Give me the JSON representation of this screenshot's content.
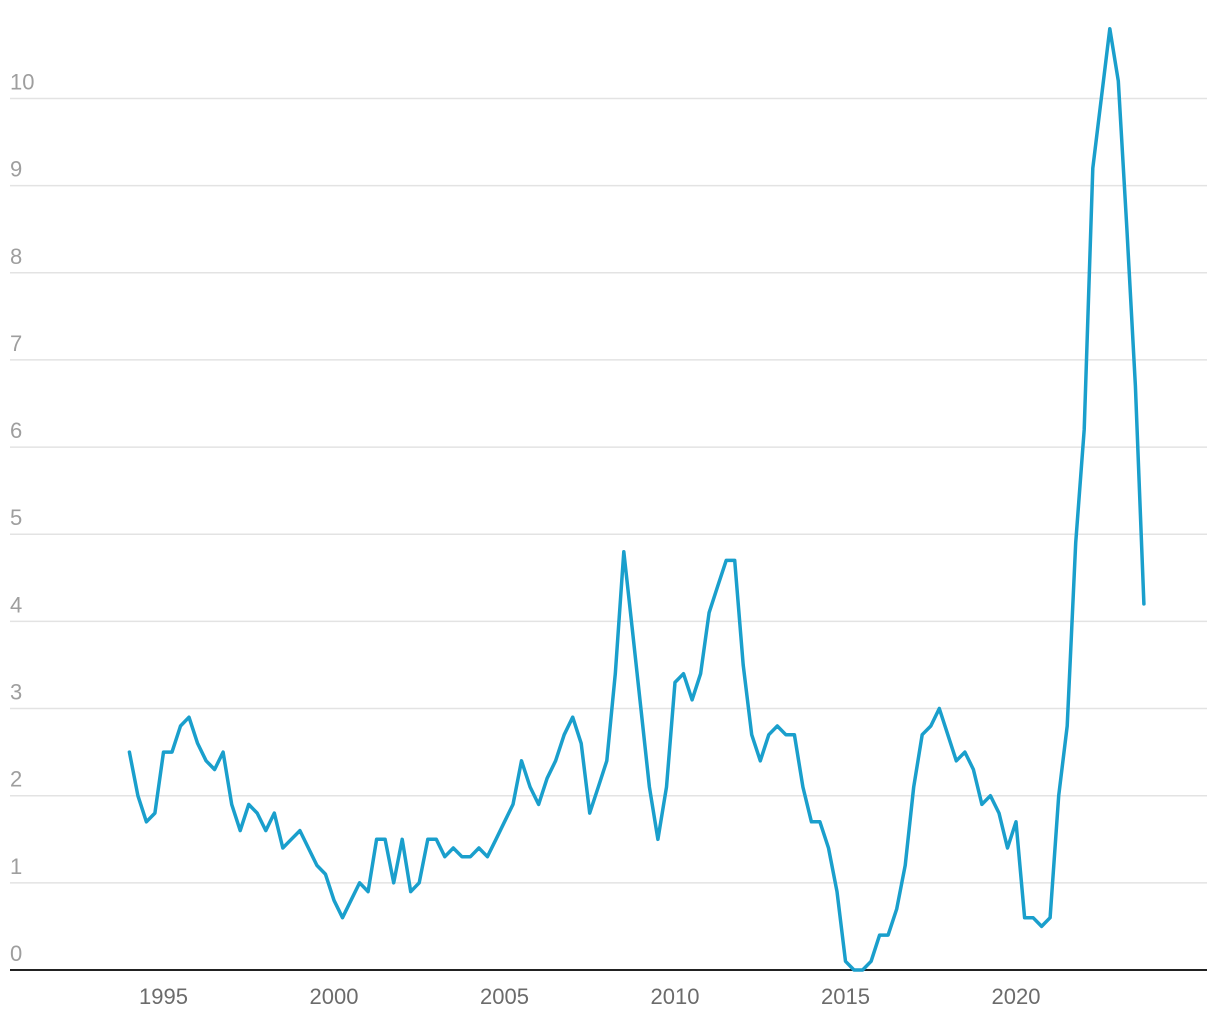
{
  "chart_data": {
    "type": "line",
    "title": "",
    "xlabel": "",
    "ylabel": "",
    "xlim": [
      1990.5,
      2025.6
    ],
    "ylim": [
      0,
      10.9
    ],
    "y_ticks": [
      "0",
      "1",
      "2",
      "3",
      "4",
      "5",
      "6",
      "7",
      "8",
      "9",
      "10"
    ],
    "x_ticks": [
      "1995",
      "2000",
      "2005",
      "2010",
      "2015",
      "2020"
    ],
    "grid": true,
    "series": [
      {
        "name": "",
        "color": "#1a9fcc",
        "x": [
          1994.0,
          1994.25,
          1994.5,
          1994.75,
          1995.0,
          1995.25,
          1995.5,
          1995.75,
          1996.0,
          1996.25,
          1996.5,
          1996.75,
          1997.0,
          1997.25,
          1997.5,
          1997.75,
          1998.0,
          1998.25,
          1998.5,
          1998.75,
          1999.0,
          1999.25,
          1999.5,
          1999.75,
          2000.0,
          2000.25,
          2000.5,
          2000.75,
          2001.0,
          2001.25,
          2001.5,
          2001.75,
          2002.0,
          2002.25,
          2002.5,
          2002.75,
          2003.0,
          2003.25,
          2003.5,
          2003.75,
          2004.0,
          2004.25,
          2004.5,
          2004.75,
          2005.0,
          2005.25,
          2005.5,
          2005.75,
          2006.0,
          2006.25,
          2006.5,
          2006.75,
          2007.0,
          2007.25,
          2007.5,
          2007.75,
          2008.0,
          2008.25,
          2008.5,
          2008.75,
          2009.0,
          2009.25,
          2009.5,
          2009.75,
          2010.0,
          2010.25,
          2010.5,
          2010.75,
          2011.0,
          2011.25,
          2011.5,
          2011.75,
          2012.0,
          2012.25,
          2012.5,
          2012.75,
          2013.0,
          2013.25,
          2013.5,
          2013.75,
          2014.0,
          2014.25,
          2014.5,
          2014.75,
          2015.0,
          2015.25,
          2015.5,
          2015.75,
          2016.0,
          2016.25,
          2016.5,
          2016.75,
          2017.0,
          2017.25,
          2017.5,
          2017.75,
          2018.0,
          2018.25,
          2018.5,
          2018.75,
          2019.0,
          2019.25,
          2019.5,
          2019.75,
          2020.0,
          2020.25,
          2020.5,
          2020.75,
          2021.0,
          2021.25,
          2021.5,
          2021.75,
          2022.0,
          2022.25,
          2022.5,
          2022.75,
          2023.0,
          2023.25,
          2023.5,
          2023.75
        ],
        "values": [
          2.5,
          2.0,
          1.7,
          1.8,
          2.5,
          2.5,
          2.8,
          2.9,
          2.6,
          2.4,
          2.3,
          2.5,
          1.9,
          1.6,
          1.9,
          1.8,
          1.6,
          1.8,
          1.4,
          1.5,
          1.6,
          1.4,
          1.2,
          1.1,
          0.8,
          0.6,
          0.8,
          1.0,
          0.9,
          1.5,
          1.5,
          1.0,
          1.5,
          0.9,
          1.0,
          1.5,
          1.5,
          1.3,
          1.4,
          1.3,
          1.3,
          1.4,
          1.3,
          1.5,
          1.7,
          1.9,
          2.4,
          2.1,
          1.9,
          2.2,
          2.4,
          2.7,
          2.9,
          2.6,
          1.8,
          2.1,
          2.4,
          3.4,
          4.8,
          3.9,
          3.0,
          2.1,
          1.5,
          2.1,
          3.3,
          3.4,
          3.1,
          3.4,
          4.1,
          4.4,
          4.7,
          4.7,
          3.5,
          2.7,
          2.4,
          2.7,
          2.8,
          2.7,
          2.7,
          2.1,
          1.7,
          1.7,
          1.4,
          0.9,
          0.1,
          0.0,
          0.0,
          0.1,
          0.4,
          0.4,
          0.7,
          1.2,
          2.1,
          2.7,
          2.8,
          3.0,
          2.7,
          2.4,
          2.5,
          2.3,
          1.9,
          2.0,
          1.8,
          1.4,
          1.7,
          0.6,
          0.6,
          0.5,
          0.6,
          2.0,
          2.8,
          4.9,
          6.2,
          9.2,
          10.0,
          10.8,
          10.2,
          8.5,
          6.7,
          4.2
        ]
      }
    ]
  }
}
